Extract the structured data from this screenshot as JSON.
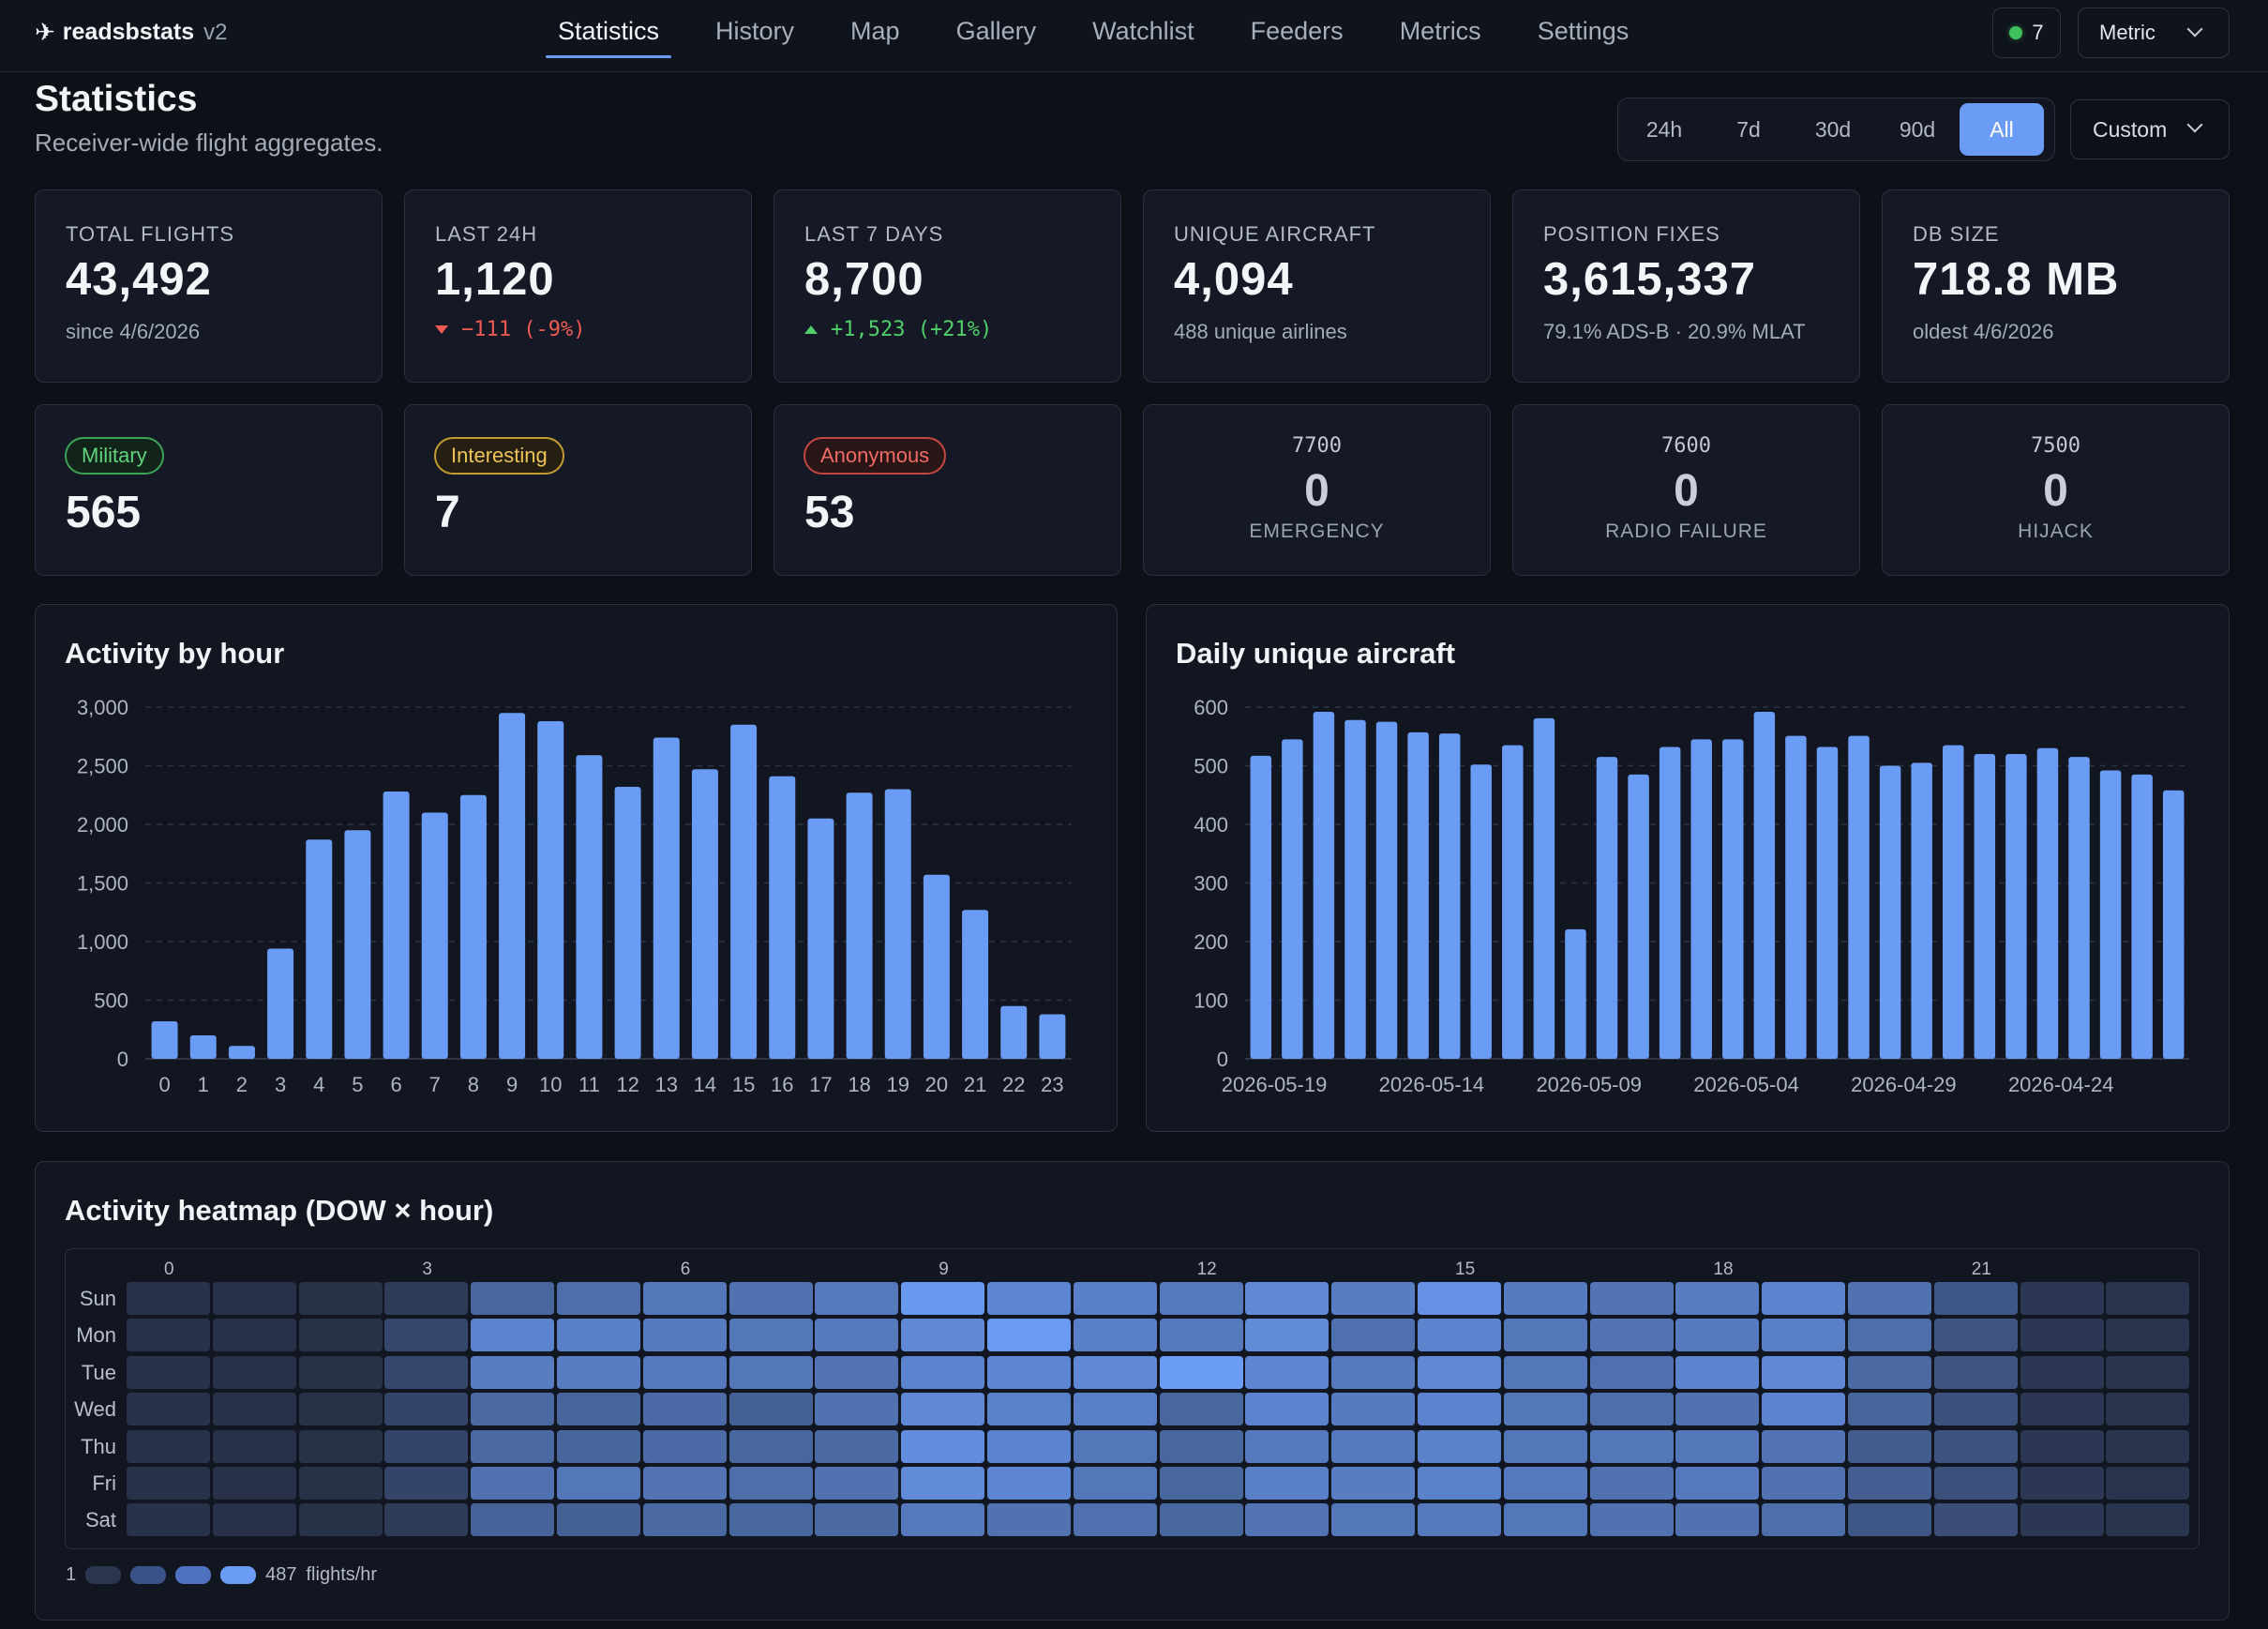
{
  "nav": {
    "brand": "readsbstats",
    "version": "v2",
    "tabs": [
      "Statistics",
      "History",
      "Map",
      "Gallery",
      "Watchlist",
      "Feeders",
      "Metrics",
      "Settings"
    ],
    "active_tab": "Statistics",
    "feeder_count": "7",
    "feeder_status_color": "#3fc25e",
    "units": "Metric"
  },
  "header": {
    "title": "Statistics",
    "subtitle": "Receiver-wide flight aggregates.",
    "ranges": [
      "24h",
      "7d",
      "30d",
      "90d",
      "All"
    ],
    "active_range": "All",
    "custom_label": "Custom"
  },
  "kpis": {
    "total_flights": {
      "label": "TOTAL FLIGHTS",
      "value": "43,492",
      "sub": "since 4/6/2026"
    },
    "last_24h": {
      "label": "LAST 24H",
      "value": "1,120",
      "delta": "−111 (-9%)",
      "direction": "down"
    },
    "last_7_days": {
      "label": "LAST 7 DAYS",
      "value": "8,700",
      "delta": "+1,523 (+21%)",
      "direction": "up"
    },
    "unique_aircraft": {
      "label": "UNIQUE AIRCRAFT",
      "value": "4,094",
      "sub": "488 unique airlines"
    },
    "position_fixes": {
      "label": "POSITION FIXES",
      "value": "3,615,337",
      "sub": "79.1% ADS-B · 20.9% MLAT"
    },
    "db_size": {
      "label": "DB SIZE",
      "value": "718.8 MB",
      "sub": "oldest 4/6/2026"
    }
  },
  "categories": {
    "military": {
      "label": "Military",
      "value": "565",
      "color": "#5fd37a"
    },
    "interesting": {
      "label": "Interesting",
      "value": "7",
      "color": "#f0c454"
    },
    "anonymous": {
      "label": "Anonymous",
      "value": "53",
      "color": "#ef6b63"
    }
  },
  "squawks": {
    "emergency": {
      "code": "7700",
      "value": "0",
      "label": "EMERGENCY"
    },
    "radio_failure": {
      "code": "7600",
      "value": "0",
      "label": "RADIO FAILURE"
    },
    "hijack": {
      "code": "7500",
      "value": "0",
      "label": "HIJACK"
    }
  },
  "charts": {
    "hourly_title": "Activity by hour",
    "daily_title": "Daily unique aircraft",
    "heatmap_title": "Activity heatmap (DOW × hour)"
  },
  "chart_data": [
    {
      "type": "bar",
      "title": "Activity by hour",
      "bar_color": "#6b9cf5",
      "categories": [
        "0",
        "1",
        "2",
        "3",
        "4",
        "5",
        "6",
        "7",
        "8",
        "9",
        "10",
        "11",
        "12",
        "13",
        "14",
        "15",
        "16",
        "17",
        "18",
        "19",
        "20",
        "21",
        "22",
        "23"
      ],
      "values": [
        320,
        200,
        110,
        940,
        1870,
        1950,
        2280,
        2100,
        2250,
        2950,
        2880,
        2590,
        2320,
        2740,
        2470,
        2850,
        2410,
        2050,
        2270,
        2300,
        1570,
        1270,
        450,
        380
      ],
      "ylim": [
        0,
        3000
      ],
      "yticks": [
        "0",
        "500",
        "1,000",
        "1,500",
        "2,000",
        "2,500",
        "3,000"
      ],
      "grid": true
    },
    {
      "type": "bar",
      "title": "Daily unique aircraft",
      "bar_color": "#6b9cf5",
      "values": [
        517,
        545,
        592,
        578,
        575,
        557,
        555,
        502,
        535,
        581,
        221,
        515,
        485,
        532,
        545,
        545,
        592,
        551,
        532,
        551,
        500,
        505,
        535,
        520,
        520,
        530,
        515,
        492,
        485,
        458
      ],
      "x_tick_labels": [
        "2026-05-19",
        "2026-05-14",
        "2026-05-09",
        "2026-05-04",
        "2026-04-29",
        "2026-04-24"
      ],
      "ylim": [
        0,
        600
      ],
      "yticks": [
        "0",
        "100",
        "200",
        "300",
        "400",
        "500",
        "600"
      ],
      "grid": true
    },
    {
      "type": "heatmap",
      "title": "Activity heatmap (DOW × hour)",
      "rows": [
        "Sun",
        "Mon",
        "Tue",
        "Wed",
        "Thu",
        "Fri",
        "Sat"
      ],
      "hour_labels": [
        "0",
        "3",
        "6",
        "9",
        "12",
        "15",
        "18",
        "21"
      ],
      "min": 1,
      "max": 487,
      "unit": "flights/hr",
      "values": [
        [
          15,
          12,
          10,
          60,
          250,
          280,
          320,
          300,
          330,
          470,
          390,
          360,
          330,
          400,
          350,
          440,
          340,
          310,
          350,
          380,
          300,
          180,
          40,
          25
        ],
        [
          15,
          12,
          10,
          110,
          380,
          360,
          340,
          320,
          330,
          400,
          480,
          360,
          330,
          410,
          290,
          380,
          320,
          310,
          340,
          360,
          280,
          170,
          40,
          25
        ],
        [
          15,
          12,
          10,
          110,
          350,
          350,
          330,
          320,
          310,
          380,
          390,
          400,
          487,
          390,
          330,
          400,
          320,
          290,
          380,
          400,
          260,
          170,
          40,
          25
        ],
        [
          15,
          12,
          10,
          100,
          260,
          240,
          270,
          220,
          300,
          400,
          370,
          360,
          250,
          380,
          340,
          380,
          320,
          280,
          300,
          380,
          240,
          150,
          40,
          25
        ],
        [
          15,
          12,
          10,
          100,
          260,
          240,
          270,
          250,
          260,
          420,
          380,
          320,
          250,
          330,
          330,
          370,
          320,
          320,
          320,
          310,
          200,
          160,
          40,
          25
        ],
        [
          15,
          12,
          10,
          100,
          300,
          320,
          310,
          280,
          300,
          410,
          390,
          320,
          250,
          360,
          350,
          370,
          330,
          300,
          330,
          300,
          210,
          150,
          40,
          25
        ],
        [
          15,
          12,
          10,
          60,
          230,
          220,
          260,
          250,
          260,
          330,
          300,
          290,
          250,
          310,
          320,
          330,
          320,
          300,
          300,
          280,
          180,
          140,
          40,
          25
        ]
      ]
    }
  ],
  "heatmap_legend": {
    "min_label": "1",
    "max_label": "487",
    "unit": "flights/hr"
  }
}
